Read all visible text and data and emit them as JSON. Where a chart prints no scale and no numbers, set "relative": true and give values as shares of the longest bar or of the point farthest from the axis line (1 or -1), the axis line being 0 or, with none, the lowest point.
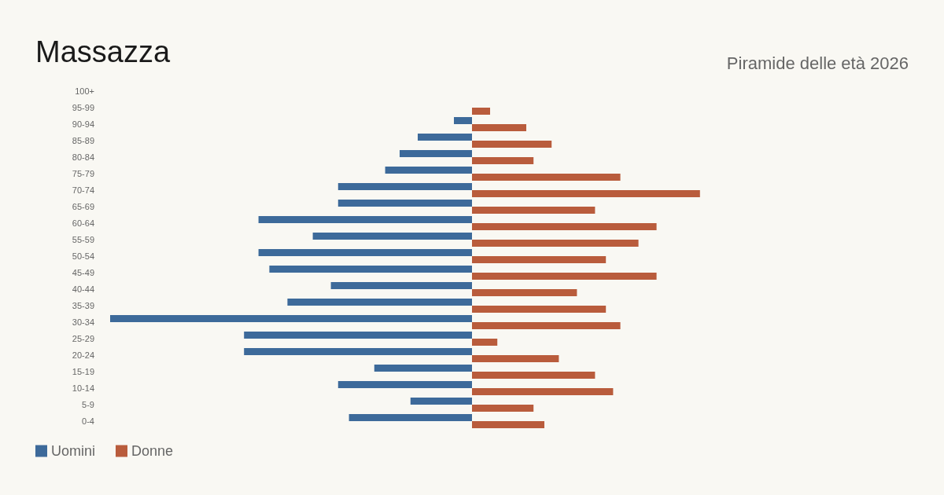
{
  "chart_data": {
    "type": "bar",
    "orientation": "horizontal",
    "relative": true,
    "title": "Massazza",
    "subtitle": "Piramide delle età 2026",
    "categories": [
      "100+",
      "95-99",
      "90-94",
      "85-89",
      "80-84",
      "75-79",
      "70-74",
      "65-69",
      "60-64",
      "55-59",
      "50-54",
      "45-49",
      "40-44",
      "35-39",
      "30-34",
      "25-29",
      "20-24",
      "15-19",
      "10-14",
      "5-9",
      "0-4"
    ],
    "series": [
      {
        "name": "Uomini",
        "color": "#3d6a9a",
        "values": [
          0,
          0,
          -0.05,
          -0.15,
          -0.2,
          -0.24,
          -0.37,
          -0.37,
          -0.59,
          -0.44,
          -0.59,
          -0.56,
          -0.39,
          -0.51,
          -1,
          -0.63,
          -0.63,
          -0.27,
          -0.37,
          -0.17,
          -0.34
        ]
      },
      {
        "name": "Donne",
        "color": "#b95c3c",
        "values": [
          0,
          0.05,
          0.15,
          0.22,
          0.17,
          0.41,
          0.63,
          0.34,
          0.51,
          0.46,
          0.37,
          0.51,
          0.29,
          0.37,
          0.41,
          0.07,
          0.24,
          0.34,
          0.39,
          0.17,
          0.2
        ]
      }
    ],
    "legend": "bottom left",
    "grid": false,
    "tick_labels": "y"
  }
}
